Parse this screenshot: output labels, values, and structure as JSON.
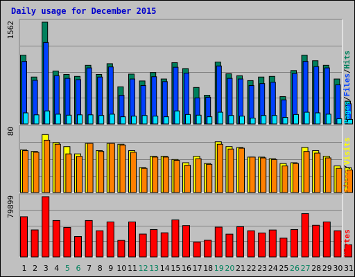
{
  "title": "Daily usage for December 2015",
  "colors": {
    "hits": "#00805c",
    "files": "#0040ff",
    "pages": "#00e0ff",
    "visits": "#ffff00",
    "sites": "#ff8000",
    "kbytes": "#ff0000",
    "weekend_label": "#00805c",
    "weekday_label": "#000000"
  },
  "chart_data": [
    {
      "type": "bar",
      "panel": "hits-files-pages",
      "categories": [
        "1",
        "2",
        "3",
        "4",
        "5",
        "6",
        "7",
        "8",
        "9",
        "10",
        "11",
        "12",
        "13",
        "14",
        "15",
        "16",
        "17",
        "18",
        "19",
        "20",
        "21",
        "22",
        "23",
        "24",
        "25",
        "26",
        "27",
        "28",
        "29",
        "30",
        "31"
      ],
      "ymax_label": "1562",
      "ylim": [
        0,
        1562
      ],
      "legend": [
        "Pages",
        "/",
        "Files",
        "/",
        "Hits"
      ],
      "series": [
        {
          "name": "Hits",
          "values": [
            1055,
            720,
            1562,
            812,
            760,
            730,
            900,
            760,
            925,
            570,
            765,
            660,
            790,
            690,
            940,
            850,
            560,
            440,
            950,
            770,
            740,
            665,
            720,
            730,
            420,
            820,
            1055,
            970,
            900,
            690,
            350
          ]
        },
        {
          "name": "Files",
          "values": [
            960,
            670,
            1250,
            740,
            700,
            680,
            860,
            720,
            875,
            440,
            690,
            590,
            725,
            650,
            870,
            780,
            400,
            410,
            890,
            700,
            690,
            590,
            620,
            640,
            370,
            775,
            960,
            880,
            860,
            600,
            310
          ]
        },
        {
          "name": "Pages",
          "values": [
            170,
            140,
            200,
            150,
            135,
            140,
            140,
            130,
            150,
            110,
            120,
            130,
            120,
            110,
            200,
            145,
            135,
            110,
            180,
            130,
            120,
            90,
            130,
            130,
            100,
            145,
            180,
            170,
            150,
            80,
            70
          ]
        }
      ]
    },
    {
      "type": "bar",
      "panel": "visits-sites",
      "categories": [
        "1",
        "2",
        "3",
        "4",
        "5",
        "6",
        "7",
        "8",
        "9",
        "10",
        "11",
        "12",
        "13",
        "14",
        "15",
        "16",
        "17",
        "18",
        "19",
        "20",
        "21",
        "22",
        "23",
        "24",
        "25",
        "26",
        "27",
        "28",
        "29",
        "30",
        "31"
      ],
      "ymax_label": "80",
      "ylim": [
        0,
        80
      ],
      "legend": [
        "Sites",
        "/",
        "Visits"
      ],
      "series": [
        {
          "name": "Visits",
          "values": [
            53,
            51,
            72,
            62,
            57,
            48,
            61,
            52,
            61,
            60,
            52,
            31,
            45,
            45,
            41,
            37,
            45,
            36,
            63,
            57,
            56,
            44,
            44,
            42,
            36,
            37,
            56,
            52,
            45,
            33,
            31
          ]
        },
        {
          "name": "Sites",
          "values": [
            52,
            50,
            65,
            60,
            48,
            45,
            61,
            51,
            61,
            59,
            50,
            30,
            44,
            44,
            40,
            34,
            42,
            35,
            60,
            54,
            55,
            44,
            43,
            41,
            33,
            36,
            51,
            49,
            43,
            30,
            28
          ]
        }
      ]
    },
    {
      "type": "bar",
      "panel": "kbytes",
      "categories": [
        "1",
        "2",
        "3",
        "4",
        "5",
        "6",
        "7",
        "8",
        "9",
        "10",
        "11",
        "12",
        "13",
        "14",
        "15",
        "16",
        "17",
        "18",
        "19",
        "20",
        "21",
        "22",
        "23",
        "24",
        "25",
        "26",
        "27",
        "28",
        "29",
        "30",
        "31"
      ],
      "ymax_label": "79899",
      "ylim": [
        0,
        79899
      ],
      "legend": [
        "KBytes"
      ],
      "series": [
        {
          "name": "KBytes",
          "values": [
            53300,
            35800,
            79899,
            48300,
            39100,
            27100,
            48300,
            34700,
            46400,
            21900,
            46400,
            30300,
            36300,
            32000,
            49100,
            41600,
            19600,
            22100,
            39500,
            30200,
            40000,
            34700,
            31800,
            35700,
            24900,
            36300,
            57400,
            42000,
            46400,
            34700,
            16000
          ]
        }
      ]
    }
  ]
}
